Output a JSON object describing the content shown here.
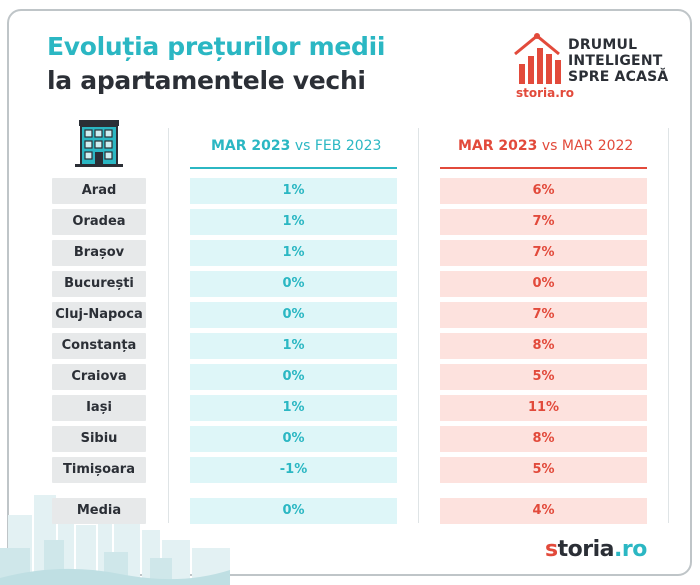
{
  "header": {
    "title_line1": "Evoluția prețurilor medii",
    "title_line2": "la apartamentele vechi"
  },
  "logo": {
    "tag_line1": "DRUMUL",
    "tag_line2": "INTELIGENT",
    "tag_line3": "SPRE ACASĂ",
    "brand_small": "storia.ro",
    "icon": "house-chart-icon"
  },
  "columns": {
    "a": {
      "bold": "MAR 2023",
      "rest": " vs FEB 2023"
    },
    "b": {
      "bold": "MAR 2023",
      "rest": " vs MAR 2022"
    }
  },
  "rows": [
    {
      "city": "Arad",
      "a": "1%",
      "b": "6%"
    },
    {
      "city": "Oradea",
      "a": "1%",
      "b": "7%"
    },
    {
      "city": "Brașov",
      "a": "1%",
      "b": "7%"
    },
    {
      "city": "București",
      "a": "0%",
      "b": "0%"
    },
    {
      "city": "Cluj-Napoca",
      "a": "0%",
      "b": "7%"
    },
    {
      "city": "Constanța",
      "a": "1%",
      "b": "8%"
    },
    {
      "city": "Craiova",
      "a": "0%",
      "b": "5%"
    },
    {
      "city": "Iași",
      "a": "1%",
      "b": "11%"
    },
    {
      "city": "Sibiu",
      "a": "0%",
      "b": "8%"
    },
    {
      "city": "Timișoara",
      "a": "-1%",
      "b": "5%"
    }
  ],
  "media": {
    "city": "Media",
    "a": "0%",
    "b": "4%"
  },
  "footer": {
    "brand_s": "s",
    "brand_mid": "toria",
    "brand_ro": ".ro"
  },
  "colors": {
    "teal": "#2bb7c3",
    "red": "#e24a3b",
    "dark": "#2b2f36"
  }
}
